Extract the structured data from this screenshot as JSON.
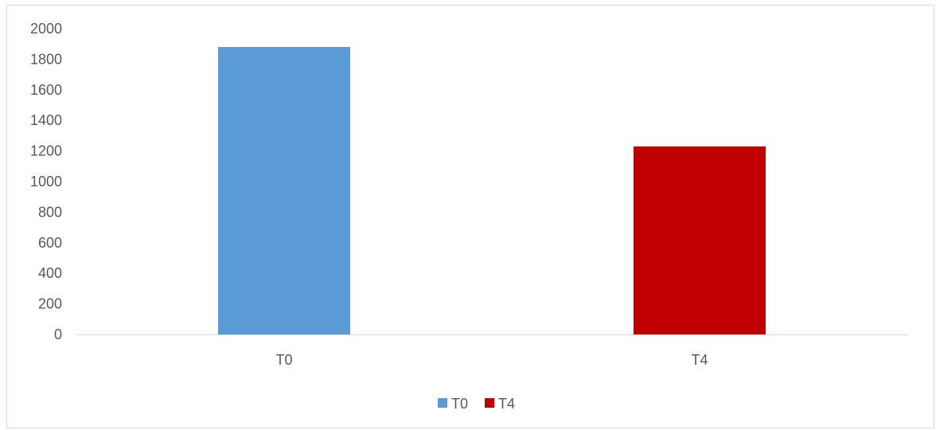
{
  "chart_data": {
    "type": "bar",
    "categories": [
      "T0",
      "T4"
    ],
    "values": [
      1880,
      1230
    ],
    "colors": [
      "#5b9bd5",
      "#c00000"
    ],
    "ylim": [
      0,
      2000
    ],
    "yticks": [
      0,
      200,
      400,
      600,
      800,
      1000,
      1200,
      1400,
      1600,
      1800,
      2000
    ],
    "grid": false,
    "legend": {
      "position": "bottom",
      "entries": [
        {
          "label": "T0",
          "color": "#5b9bd5"
        },
        {
          "label": "T4",
          "color": "#c00000"
        }
      ]
    }
  }
}
